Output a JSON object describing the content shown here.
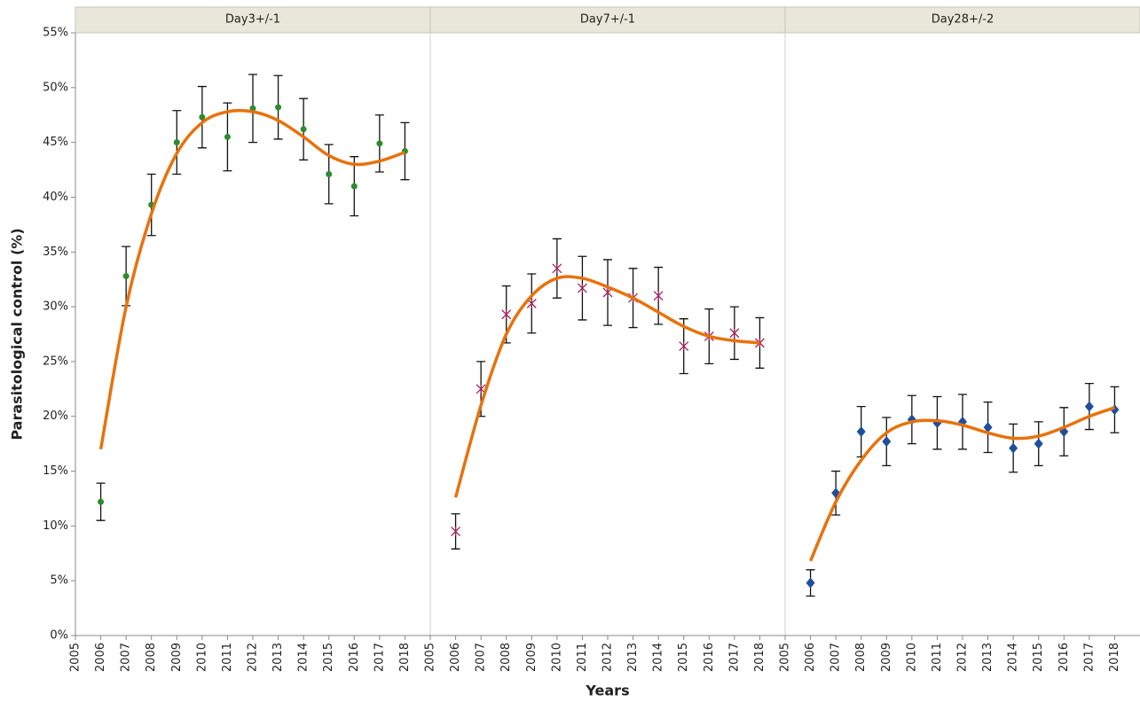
{
  "chart_data": {
    "type": "scatter",
    "ylabel": "Parasitological control (%)",
    "xlabel": "Years",
    "ylim": [
      0,
      55
    ],
    "yticks": [
      {
        "value": 0,
        "label": "0%"
      },
      {
        "value": 5,
        "label": "5%"
      },
      {
        "value": 10,
        "label": "10%"
      },
      {
        "value": 15,
        "label": "15%"
      },
      {
        "value": 20,
        "label": "20%"
      },
      {
        "value": 25,
        "label": "25%"
      },
      {
        "value": 30,
        "label": "30%"
      },
      {
        "value": 35,
        "label": "35%"
      },
      {
        "value": 40,
        "label": "40%"
      },
      {
        "value": 45,
        "label": "45%"
      },
      {
        "value": 50,
        "label": "50%"
      },
      {
        "value": 55,
        "label": "55%"
      }
    ],
    "xlim": [
      2005,
      2019
    ],
    "xticks": [
      2005,
      2006,
      2007,
      2008,
      2009,
      2010,
      2011,
      2012,
      2013,
      2014,
      2015,
      2016,
      2017,
      2018
    ],
    "x": [
      2006,
      2007,
      2008,
      2009,
      2010,
      2011,
      2012,
      2013,
      2014,
      2015,
      2016,
      2017,
      2018
    ],
    "fit_color": "#e8720c",
    "panels": [
      {
        "title": "Day3+/-1",
        "color": "#2e8b2e",
        "marker": "circle",
        "values": [
          12.2,
          32.8,
          39.3,
          45.0,
          47.3,
          45.5,
          48.1,
          48.2,
          46.2,
          42.1,
          41.0,
          44.9,
          44.2
        ],
        "errors": [
          1.7,
          2.7,
          2.8,
          2.9,
          2.8,
          3.1,
          3.1,
          2.9,
          2.8,
          2.7,
          2.7,
          2.6,
          2.6
        ],
        "fit": [
          17.0,
          30.0,
          38.5,
          44.0,
          46.8,
          47.8,
          47.8,
          47.0,
          45.5,
          43.8,
          43.0,
          43.3,
          44.1
        ]
      },
      {
        "title": "Day7+/-1",
        "color": "#a0245a",
        "marker": "star",
        "values": [
          9.5,
          22.5,
          29.3,
          30.3,
          33.5,
          31.7,
          31.3,
          30.8,
          31.0,
          26.4,
          27.3,
          27.6,
          26.7
        ],
        "errors": [
          1.6,
          2.5,
          2.6,
          2.7,
          2.7,
          2.9,
          3.0,
          2.7,
          2.6,
          2.5,
          2.5,
          2.4,
          2.3
        ],
        "fit": [
          12.6,
          21.0,
          27.5,
          31.0,
          32.6,
          32.6,
          31.8,
          30.8,
          29.5,
          28.2,
          27.3,
          26.9,
          26.7
        ]
      },
      {
        "title": "Day28+/-2",
        "color": "#1f4e9c",
        "marker": "diamond",
        "values": [
          4.8,
          13.0,
          18.6,
          17.7,
          19.7,
          19.4,
          19.5,
          19.0,
          17.1,
          17.5,
          18.6,
          20.9,
          20.6
        ],
        "errors": [
          1.2,
          2.0,
          2.3,
          2.2,
          2.2,
          2.4,
          2.5,
          2.3,
          2.2,
          2.0,
          2.2,
          2.1,
          2.1
        ],
        "fit": [
          6.8,
          12.2,
          16.0,
          18.5,
          19.5,
          19.6,
          19.2,
          18.5,
          18.0,
          18.2,
          19.0,
          20.0,
          20.8
        ]
      }
    ]
  }
}
